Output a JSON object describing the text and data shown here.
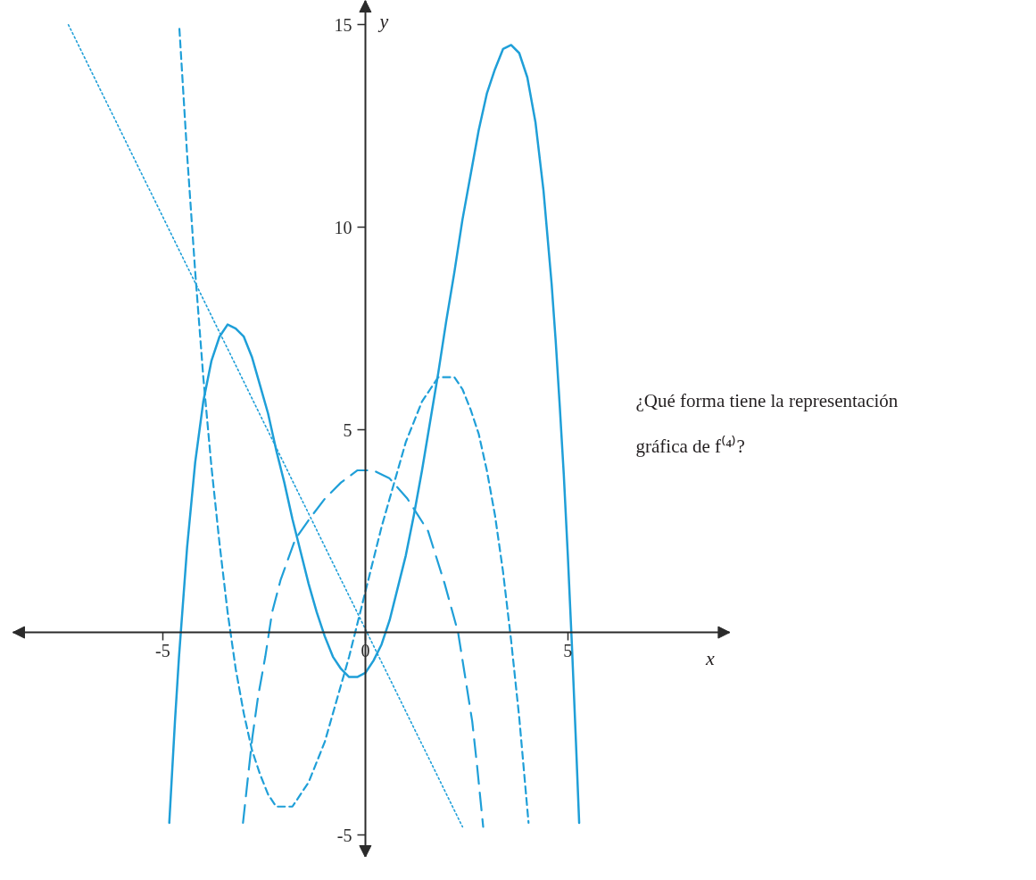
{
  "chart_data": {
    "type": "line",
    "xlabel": "x",
    "ylabel": "y",
    "xlim": [
      -8.7,
      9.0
    ],
    "ylim": [
      -5.55,
      15.6
    ],
    "xticks": [
      {
        "value": -5,
        "label": "-5"
      },
      0,
      5
    ],
    "yticks": [
      {
        "value": -5,
        "label": "-5"
      },
      5,
      10,
      15
    ],
    "series": [
      {
        "color": "#1f9fd8",
        "line_style": "solid",
        "x": [
          -4.84,
          -4.7,
          -4.6,
          -4.4,
          -4.2,
          -4.0,
          -3.8,
          -3.6,
          -3.4,
          -3.2,
          -3.0,
          -2.8,
          -2.6,
          -2.4,
          -2.2,
          -2.0,
          -1.8,
          -1.6,
          -1.4,
          -1.2,
          -1.0,
          -0.8,
          -0.6,
          -0.4,
          -0.2,
          0,
          0.2,
          0.4,
          0.6,
          0.8,
          1.0,
          1.2,
          1.4,
          1.6,
          1.8,
          2.0,
          2.2,
          2.4,
          2.6,
          2.8,
          3.0,
          3.2,
          3.4,
          3.6,
          3.8,
          4.0,
          4.2,
          4.4,
          4.6,
          4.7,
          4.8,
          4.9,
          5.0,
          5.1,
          5.2,
          5.28
        ],
        "values": [
          -4.7,
          -2.2,
          -0.6,
          2.1,
          4.2,
          5.7,
          6.7,
          7.3,
          7.6,
          7.5,
          7.3,
          6.8,
          6.1,
          5.4,
          4.5,
          3.7,
          2.8,
          2.0,
          1.2,
          0.5,
          -0.1,
          -0.6,
          -0.9,
          -1.1,
          -1.1,
          -1.0,
          -0.7,
          -0.3,
          0.3,
          1.1,
          1.9,
          2.9,
          4.0,
          5.2,
          6.4,
          7.7,
          8.9,
          10.2,
          11.3,
          12.4,
          13.3,
          13.9,
          14.4,
          14.5,
          14.3,
          13.7,
          12.6,
          10.9,
          8.6,
          7.2,
          5.6,
          3.9,
          1.9,
          -0.3,
          -2.7,
          -4.7
        ]
      },
      {
        "color": "#1f9fd8",
        "line_style": "dotted",
        "x": [
          -7.33,
          2.4
        ],
        "values": [
          15.0,
          -4.8
        ]
      },
      {
        "color": "#1f9fd8",
        "line_style": "dashed",
        "x": [
          -4.59,
          -4.4,
          -4.2,
          -4.0,
          -3.8,
          -3.6,
          -3.4,
          -3.2,
          -3.0,
          -2.8,
          -2.6,
          -2.4,
          -2.2,
          -2.0,
          -1.8,
          -1.6,
          -1.4,
          -1.2,
          -1.0,
          -0.8,
          -0.6,
          -0.4,
          -0.2,
          0,
          0.2,
          0.4,
          0.6,
          0.8,
          1.0,
          1.2,
          1.4,
          1.6,
          1.8,
          2.0,
          2.2,
          2.4,
          2.6,
          2.8,
          3.0,
          3.2,
          3.4,
          3.6,
          3.8,
          4.03
        ],
        "values": [
          14.9,
          11.8,
          8.9,
          6.3,
          4.1,
          2.2,
          0.5,
          -0.9,
          -2.0,
          -2.9,
          -3.5,
          -4.0,
          -4.3,
          -4.3,
          -4.3,
          -4.0,
          -3.7,
          -3.2,
          -2.7,
          -2.0,
          -1.3,
          -0.6,
          0.2,
          1.0,
          1.8,
          2.6,
          3.3,
          4.0,
          4.7,
          5.2,
          5.7,
          6.0,
          6.3,
          6.3,
          6.3,
          6.0,
          5.5,
          4.9,
          4.0,
          2.9,
          1.5,
          -0.2,
          -2.1,
          -4.7
        ]
      },
      {
        "color": "#1f9fd8",
        "line_style": "longdash",
        "x": [
          -3.02,
          -2.9,
          -2.79,
          -2.65,
          -2.47,
          -2.3,
          -2.09,
          -1.73,
          -1.38,
          -1.0,
          -0.6,
          -0.2,
          0.2,
          0.6,
          1.04,
          1.55,
          1.96,
          2.29,
          2.45,
          2.64,
          2.76,
          2.91
        ],
        "values": [
          -4.7,
          -3.6,
          -2.6,
          -1.6,
          -0.6,
          0.5,
          1.3,
          2.3,
          2.8,
          3.3,
          3.7,
          4.0,
          4.0,
          3.8,
          3.3,
          2.5,
          1.2,
          0.0,
          -1.0,
          -2.2,
          -3.3,
          -4.8
        ]
      }
    ],
    "annotations": [
      "¿Qué forma tiene la representación gráfica de f⁽⁴⁾?"
    ]
  }
}
